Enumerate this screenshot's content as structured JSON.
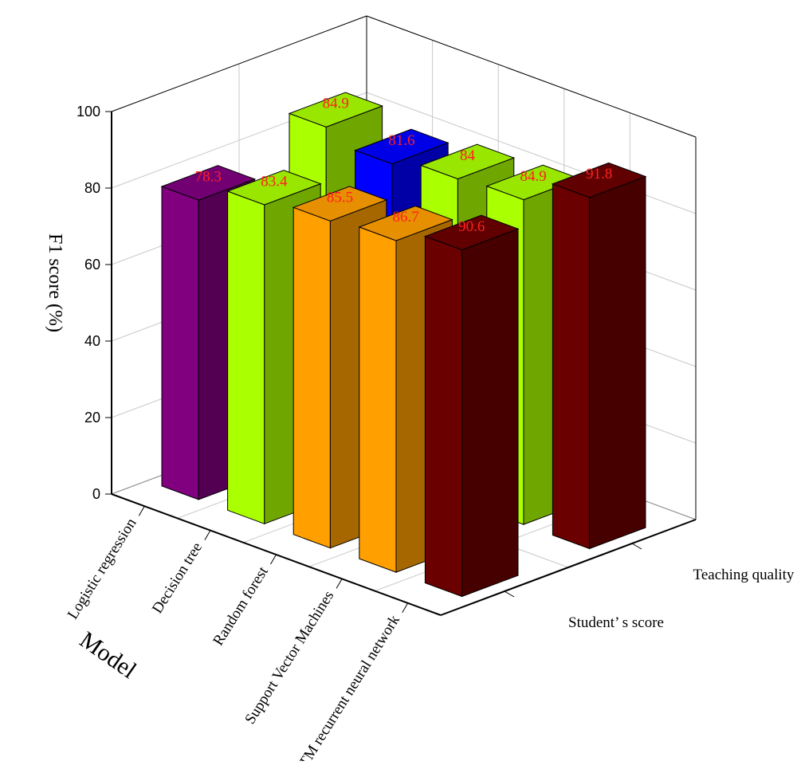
{
  "chart_data": {
    "type": "bar3d",
    "y_label": "F1 score (%)",
    "x_label": "Model",
    "categories": [
      "Logistic  regression",
      "Decision tree",
      "Random forest",
      "Support Vector Machines",
      "LSTM recurrent neural network"
    ],
    "series": [
      {
        "name": "Student’ s score",
        "colors": [
          "#800080",
          "#aaff00",
          "#ff9f00",
          "#ff9f00",
          "#6b0000"
        ],
        "values": [
          78.3,
          83.4,
          85.5,
          86.7,
          90.6
        ]
      },
      {
        "name": "Teaching quality",
        "colors": [
          "#aaff00",
          "#0000ff",
          "#aaff00",
          "#aaff00",
          "#6b0000"
        ],
        "values": [
          84.9,
          81.6,
          84,
          84.9,
          91.8
        ]
      }
    ],
    "ylim": [
      0,
      100
    ],
    "yticks": [
      0,
      20,
      40,
      60,
      80,
      100
    ],
    "grid": true,
    "label_color": "#ff2020"
  }
}
